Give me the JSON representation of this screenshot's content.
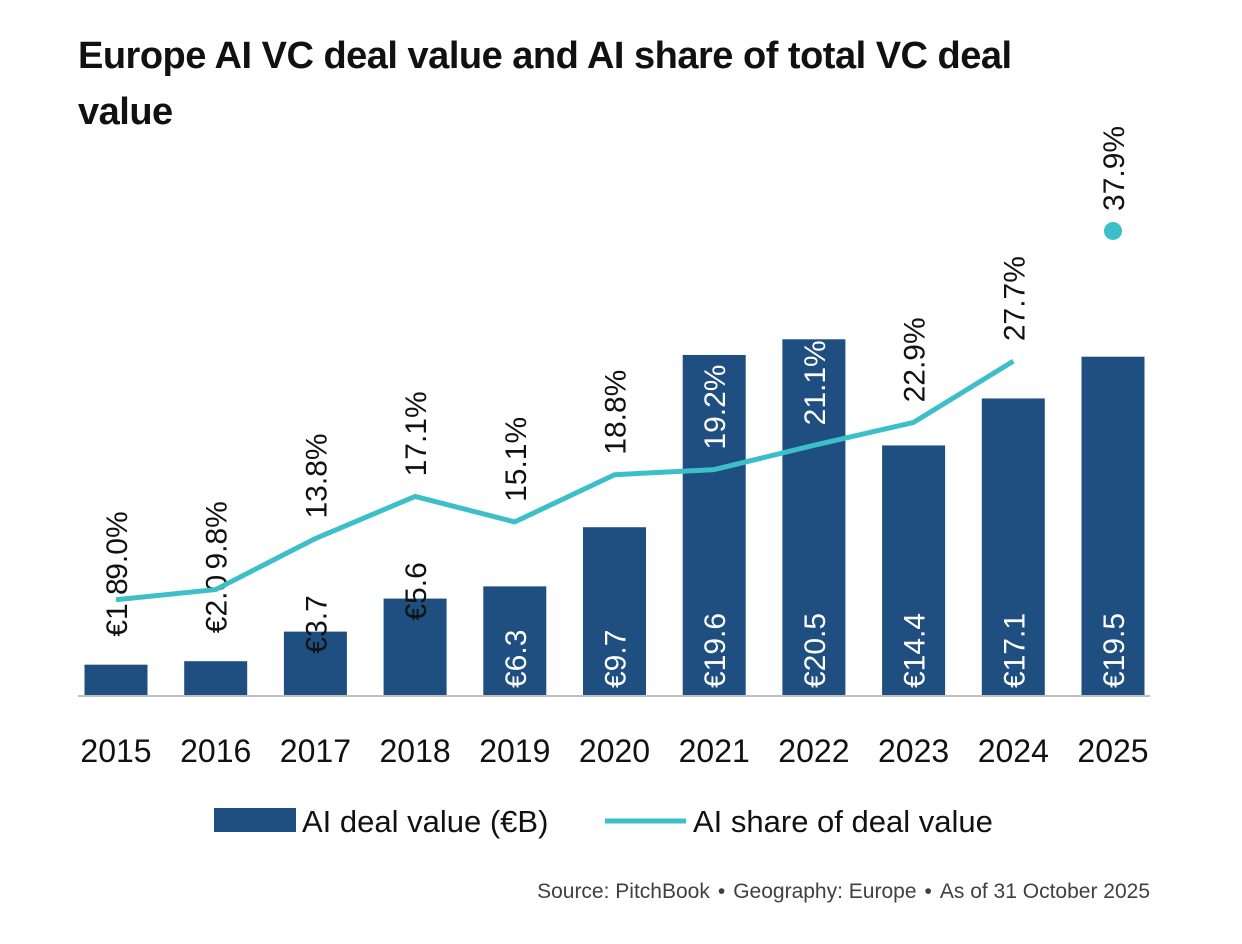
{
  "title": "Europe AI VC deal value and AI share of total VC deal value",
  "chart_data": {
    "type": "bar",
    "title": "Europe AI VC deal value and AI share of total VC deal value",
    "categories": [
      "2015",
      "2016",
      "2017",
      "2018",
      "2019",
      "2020",
      "2021",
      "2022",
      "2023",
      "2024",
      "2025"
    ],
    "series": [
      {
        "name": "AI deal value (€B)",
        "type": "bar",
        "color": "#1f4e80",
        "values": [
          1.8,
          2.0,
          3.7,
          5.6,
          6.3,
          9.7,
          19.6,
          20.5,
          14.4,
          17.1,
          19.5
        ],
        "labels": [
          "€1.8",
          "€2.0",
          "€3.7",
          "€5.6",
          "€6.3",
          "€9.7",
          "€19.6",
          "€20.5",
          "€14.4",
          "€17.1",
          "€19.5"
        ]
      },
      {
        "name": "AI share of deal value",
        "type": "line",
        "color": "#3cbfc8",
        "values": [
          9.0,
          9.8,
          13.8,
          17.1,
          15.1,
          18.8,
          19.2,
          21.1,
          22.9,
          27.7,
          37.9
        ],
        "labels": [
          "9.0%",
          "9.8%",
          "13.8%",
          "17.1%",
          "15.1%",
          "18.8%",
          "19.2%",
          "21.1%",
          "22.9%",
          "27.7%",
          "37.9%"
        ]
      }
    ],
    "legend": "bottom-center"
  },
  "legend": {
    "bar_label": "AI deal value (€B)",
    "line_label": "AI share of deal value"
  },
  "source": {
    "source": "Source: PitchBook",
    "geography": "Geography: Europe",
    "as_of": "As of 31 October 2025",
    "separator": "•"
  }
}
